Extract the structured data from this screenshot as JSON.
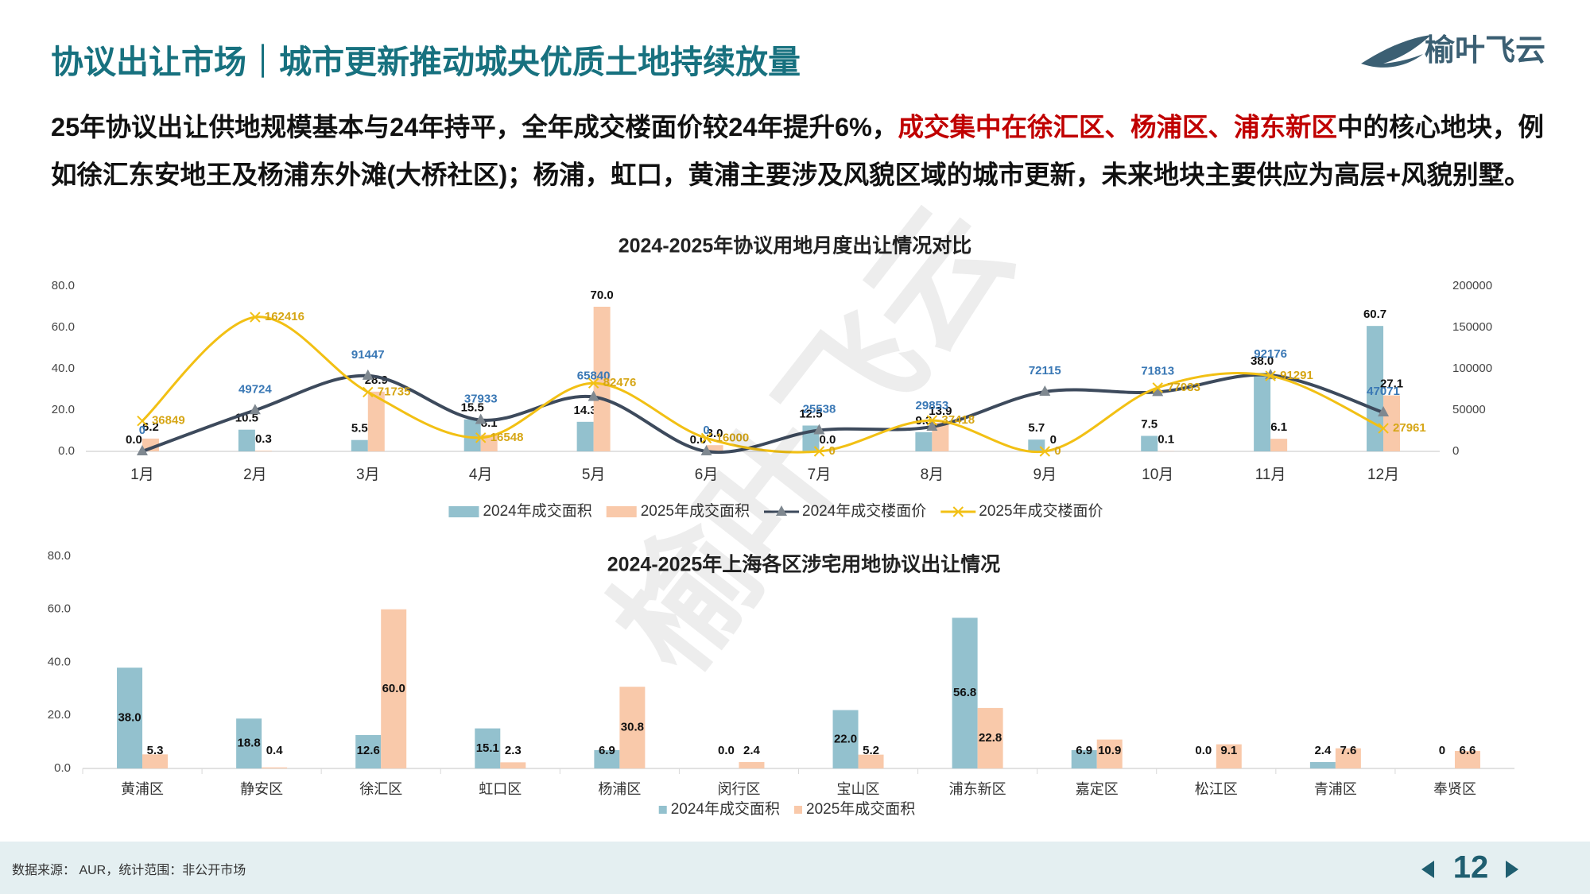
{
  "header": {
    "title": "协议出让市场｜城市更新推动城央优质土地持续放量",
    "logo": "榆叶飞云"
  },
  "summary": [
    "25年协议出让供地规模基本与24年持平，全年成交楼面价较24年提升6%，",
    "成交集中在徐汇区、杨浦区、浦东新区",
    "中的核心地块，例如徐汇东安地王及杨浦东外滩(大桥社区)；杨浦，虹口，黄浦主要涉及风貌区域的城市更新，未来地块主要供应为高层+风貌别墅。"
  ],
  "watermark": "榆叶飞云",
  "chart_data": [
    {
      "type": "bar",
      "title": "2024-2025年协议用地月度出让情况对比",
      "categories": [
        "1月",
        "2月",
        "3月",
        "4月",
        "5月",
        "6月",
        "7月",
        "8月",
        "9月",
        "10月",
        "11月",
        "12月"
      ],
      "series": [
        {
          "name": "2024年成交面积",
          "type": "bar",
          "color": "#93c1ce",
          "values": [
            0,
            10.5,
            5.5,
            15.5,
            14.3,
            0,
            12.5,
            9.3,
            5.7,
            7.5,
            38,
            60.7
          ],
          "value_labels": [
            "0.0",
            "10.5",
            "5.5",
            "15.5",
            "14.3",
            "0.0",
            "12.5",
            "9.3",
            "5.7",
            "7.5",
            "38.0",
            "60.7"
          ]
        },
        {
          "name": "2025年成交面积",
          "type": "bar",
          "color": "#f9c9aa",
          "values": [
            6.2,
            0.3,
            28.9,
            8.1,
            70,
            3,
            0,
            13.9,
            0,
            0.1,
            6.1,
            27.1
          ],
          "value_labels": [
            "6.2",
            "0.3",
            "28.9",
            "8.1",
            "70.0",
            "3.0",
            "0.0",
            "13.9",
            "0",
            "0.1",
            "6.1",
            "27.1"
          ]
        },
        {
          "name": "2024年成交楼面价",
          "type": "line",
          "axis": "y2",
          "color": "#3d4a5c",
          "marker": "triangle",
          "label_color": "#3a78b5",
          "values": [
            0,
            49724,
            91447,
            37933,
            65840,
            0,
            25538,
            29853,
            72115,
            71813,
            92176,
            47071
          ]
        },
        {
          "name": "2025年成交楼面价",
          "type": "line",
          "axis": "y2",
          "color": "#f2c014",
          "marker": "x",
          "label_color": "#d6a616",
          "values": [
            36849,
            162416,
            71735,
            16548,
            82476,
            16000,
            0,
            37418,
            0,
            77033,
            91291,
            27961
          ]
        }
      ],
      "ylim": [
        0,
        80
      ],
      "yticks": [
        {
          "value": 0,
          "label": "0.0"
        },
        {
          "value": 20,
          "label": "20.0"
        },
        {
          "value": 40,
          "label": "40.0"
        },
        {
          "value": 60,
          "label": "60.0"
        },
        {
          "value": 80,
          "label": "80.0"
        }
      ],
      "y2lim": [
        0,
        200000
      ],
      "y2ticks": [
        0,
        50000,
        100000,
        150000,
        200000
      ],
      "grid": false,
      "legend": "bottom"
    },
    {
      "type": "bar",
      "title": "2024-2025年上海各区涉宅用地协议出让情况",
      "categories": [
        "黄浦区",
        "静安区",
        "徐汇区",
        "虹口区",
        "杨浦区",
        "闵行区",
        "宝山区",
        "浦东新区",
        "嘉定区",
        "松江区",
        "青浦区",
        "奉贤区"
      ],
      "series": [
        {
          "name": "2024年成交面积",
          "type": "bar",
          "color": "#93c1ce",
          "values": [
            38,
            18.8,
            12.6,
            15.1,
            6.9,
            0,
            22,
            56.8,
            6.9,
            0,
            2.4,
            0
          ],
          "value_labels": [
            "38.0",
            "18.8",
            "12.6",
            "15.1",
            "6.9",
            "0.0",
            "22.0",
            "56.8",
            "6.9",
            "0.0",
            "2.4",
            "0"
          ]
        },
        {
          "name": "2025年成交面积",
          "type": "bar",
          "color": "#f9c9aa",
          "values": [
            5.3,
            0.4,
            60,
            2.3,
            30.8,
            2.4,
            5.2,
            22.8,
            10.9,
            9.1,
            7.6,
            6.6
          ],
          "value_labels": [
            "5.3",
            "0.4",
            "60.0",
            "2.3",
            "30.8",
            "2.4",
            "5.2",
            "22.8",
            "10.9",
            "9.1",
            "7.6",
            "6.6"
          ]
        }
      ],
      "ylim": [
        0,
        80
      ],
      "yticks": [
        {
          "value": 0,
          "label": "0.0"
        },
        {
          "value": 20,
          "label": "20.0"
        },
        {
          "value": 40,
          "label": "40.0"
        },
        {
          "value": 60,
          "label": "60.0"
        },
        {
          "value": 80,
          "label": "80.0"
        }
      ],
      "grid": false,
      "legend": "bottom"
    }
  ],
  "footer": {
    "source": "数据来源： AUR，统计范围：非公开市场",
    "page_number": "12"
  }
}
